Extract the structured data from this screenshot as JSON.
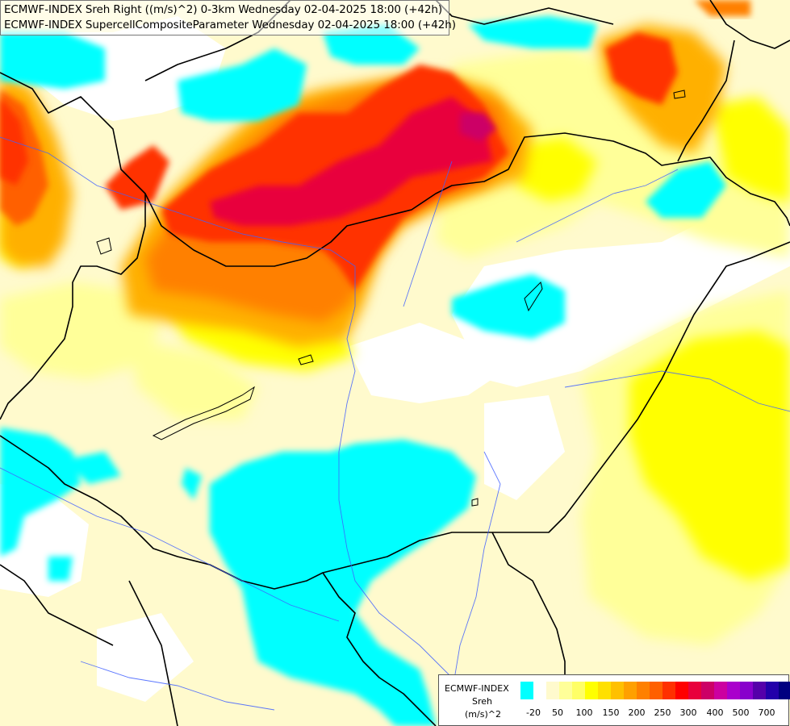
{
  "header": {
    "line1": "ECMWF-INDEX Sreh Right ((m/s)^2) 0-3km Wednesday 02-04-2025 18:00 (+42h)",
    "line2": "ECMWF-INDEX SupercellCompositeParameter Wednesday 02-04-2025 18:00 (+42h)"
  },
  "legend": {
    "title": "ECMWF-INDEX",
    "variable": "Sreh",
    "unit": "(m/s)^2",
    "colors": [
      "#00ffff",
      "#ffffff",
      "#fffacd",
      "#ffff99",
      "#ffff66",
      "#ffff00",
      "#ffe000",
      "#ffc000",
      "#ffa000",
      "#ff8000",
      "#ff6000",
      "#ff3000",
      "#ff0000",
      "#e8003c",
      "#cc0066",
      "#cc00a0",
      "#aa00cc",
      "#8800cc",
      "#5500aa",
      "#2200aa",
      "#000080"
    ],
    "ticks": [
      "-20",
      "50",
      "100",
      "150",
      "200",
      "250",
      "300",
      "400",
      "500",
      "700"
    ]
  },
  "colors": {
    "cyan": "#00ffff",
    "pale_yellow": "#fffacd",
    "light_yellow": "#ffff99",
    "yellow": "#ffff00",
    "orange": "#ff9900",
    "red": "#ff2a00",
    "magenta": "#cc0066",
    "border": "#000000",
    "river": "#4060ff"
  }
}
